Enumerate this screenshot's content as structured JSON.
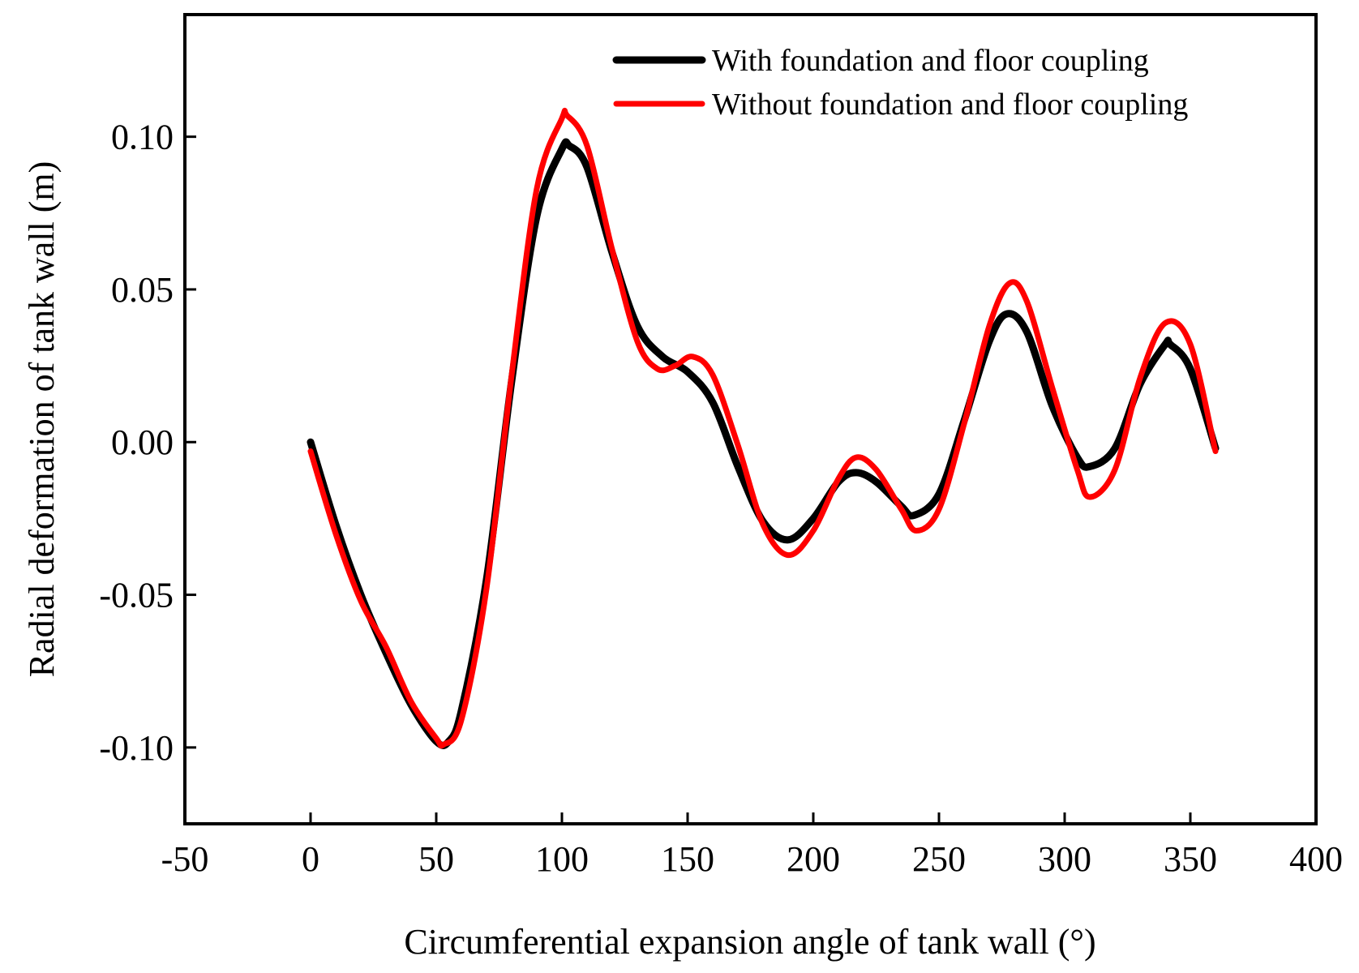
{
  "chart_data": {
    "type": "line",
    "xlabel": "Circumferential expansion angle of tank wall (°)",
    "ylabel": "Radial deformation of tank wall (m)",
    "xlim": [
      -50,
      400
    ],
    "ylim": [
      -0.125,
      0.14
    ],
    "xticks": [
      -50,
      0,
      50,
      100,
      150,
      200,
      250,
      300,
      350,
      400
    ],
    "xtick_labels": [
      "-50",
      "0",
      "50",
      "100",
      "150",
      "200",
      "250",
      "300",
      "350",
      "400"
    ],
    "yticks": [
      -0.1,
      -0.05,
      0.0,
      0.05,
      0.1
    ],
    "ytick_labels": [
      "-0.10",
      "-0.05",
      "0.00",
      "0.05",
      "0.10"
    ],
    "legend_position": "top-right",
    "series": [
      {
        "name": "With foundation and floor coupling",
        "color": "#000000",
        "x": [
          0,
          10,
          20,
          30,
          40,
          50,
          55,
          60,
          70,
          80,
          90,
          100,
          103,
          110,
          120,
          130,
          140,
          150,
          160,
          170,
          180,
          190,
          200,
          210,
          217,
          225,
          235,
          240,
          250,
          260,
          270,
          277,
          285,
          295,
          305,
          310,
          320,
          330,
          340,
          342,
          350,
          360
        ],
        "y": [
          0.0,
          -0.027,
          -0.05,
          -0.069,
          -0.086,
          -0.098,
          -0.098,
          -0.088,
          -0.045,
          0.02,
          0.074,
          0.096,
          0.097,
          0.09,
          0.062,
          0.038,
          0.028,
          0.023,
          0.013,
          -0.008,
          -0.026,
          -0.032,
          -0.025,
          -0.013,
          -0.01,
          -0.013,
          -0.021,
          -0.024,
          -0.017,
          0.007,
          0.033,
          0.042,
          0.036,
          0.012,
          -0.005,
          -0.008,
          -0.002,
          0.019,
          0.032,
          0.032,
          0.024,
          -0.002
        ]
      },
      {
        "name": "Without foundation and floor coupling",
        "color": "#ff0000",
        "x": [
          0,
          10,
          20,
          30,
          40,
          50,
          53,
          60,
          70,
          80,
          90,
          100,
          102,
          110,
          120,
          130,
          138,
          145,
          152,
          160,
          170,
          180,
          190,
          200,
          210,
          217,
          225,
          235,
          241,
          250,
          260,
          270,
          278,
          285,
          295,
          305,
          310,
          320,
          330,
          340,
          350,
          360
        ],
        "y": [
          -0.003,
          -0.03,
          -0.052,
          -0.067,
          -0.085,
          -0.097,
          -0.099,
          -0.091,
          -0.048,
          0.022,
          0.083,
          0.106,
          0.107,
          0.097,
          0.063,
          0.033,
          0.024,
          0.025,
          0.028,
          0.022,
          -0.001,
          -0.027,
          -0.037,
          -0.029,
          -0.012,
          -0.005,
          -0.009,
          -0.022,
          -0.029,
          -0.022,
          0.006,
          0.038,
          0.052,
          0.046,
          0.018,
          -0.009,
          -0.018,
          -0.009,
          0.021,
          0.039,
          0.032,
          -0.003
        ]
      }
    ]
  }
}
